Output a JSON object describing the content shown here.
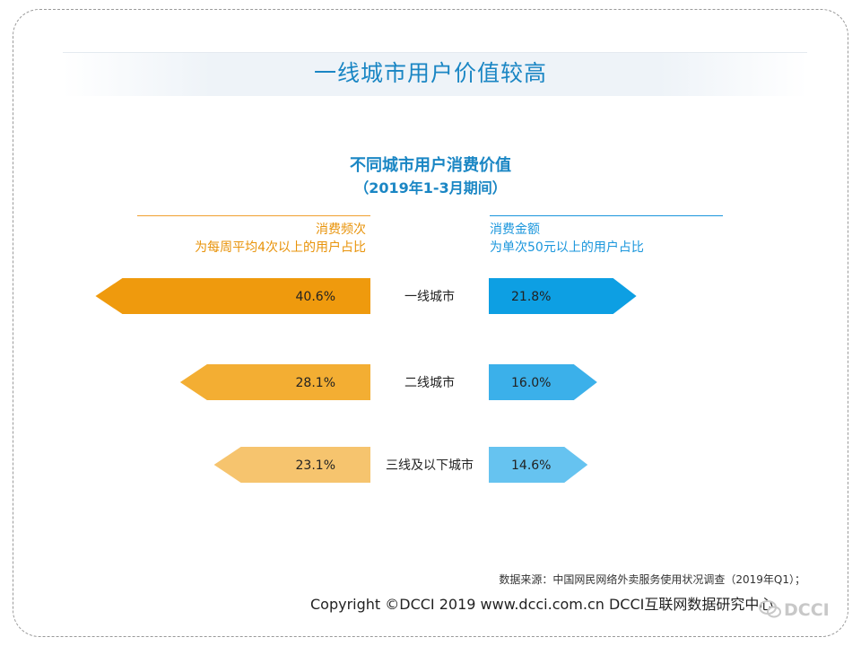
{
  "page": {
    "title": "一线城市用户价值较高",
    "source": "数据来源：中国网民网络外卖服务使用状况调查（2019年Q1）；",
    "copyright": "Copyright  ©DCCI 2019  www.dcci.com.cn   DCCI互联网数据研究中心",
    "watermark": "DCCI"
  },
  "headers": {
    "left_line1": "消费频次",
    "left_line2": "为每周平均4次以上的用户占比",
    "right_line1": "消费金额",
    "right_line2": "为单次50元以上的用户占比"
  },
  "chart_data": {
    "type": "bar",
    "title": "不同城市用户消费价值",
    "subtitle": "（2019年1-3月期间）",
    "categories": [
      "一线城市",
      "二线城市",
      "三线及以下城市"
    ],
    "series": [
      {
        "name": "消费频次",
        "values": [
          40.6,
          28.1,
          23.1
        ],
        "labels": [
          "40.6%",
          "28.1%",
          "23.1%"
        ],
        "colors": [
          "#ef9a0d",
          "#f3ae33",
          "#f6c46e"
        ]
      },
      {
        "name": "消费金额",
        "values": [
          21.8,
          16.0,
          14.6
        ],
        "labels": [
          "21.8%",
          "16.0%",
          "14.6%"
        ],
        "colors": [
          "#0d9fe3",
          "#3bb0ea",
          "#66c3f0"
        ]
      }
    ]
  }
}
